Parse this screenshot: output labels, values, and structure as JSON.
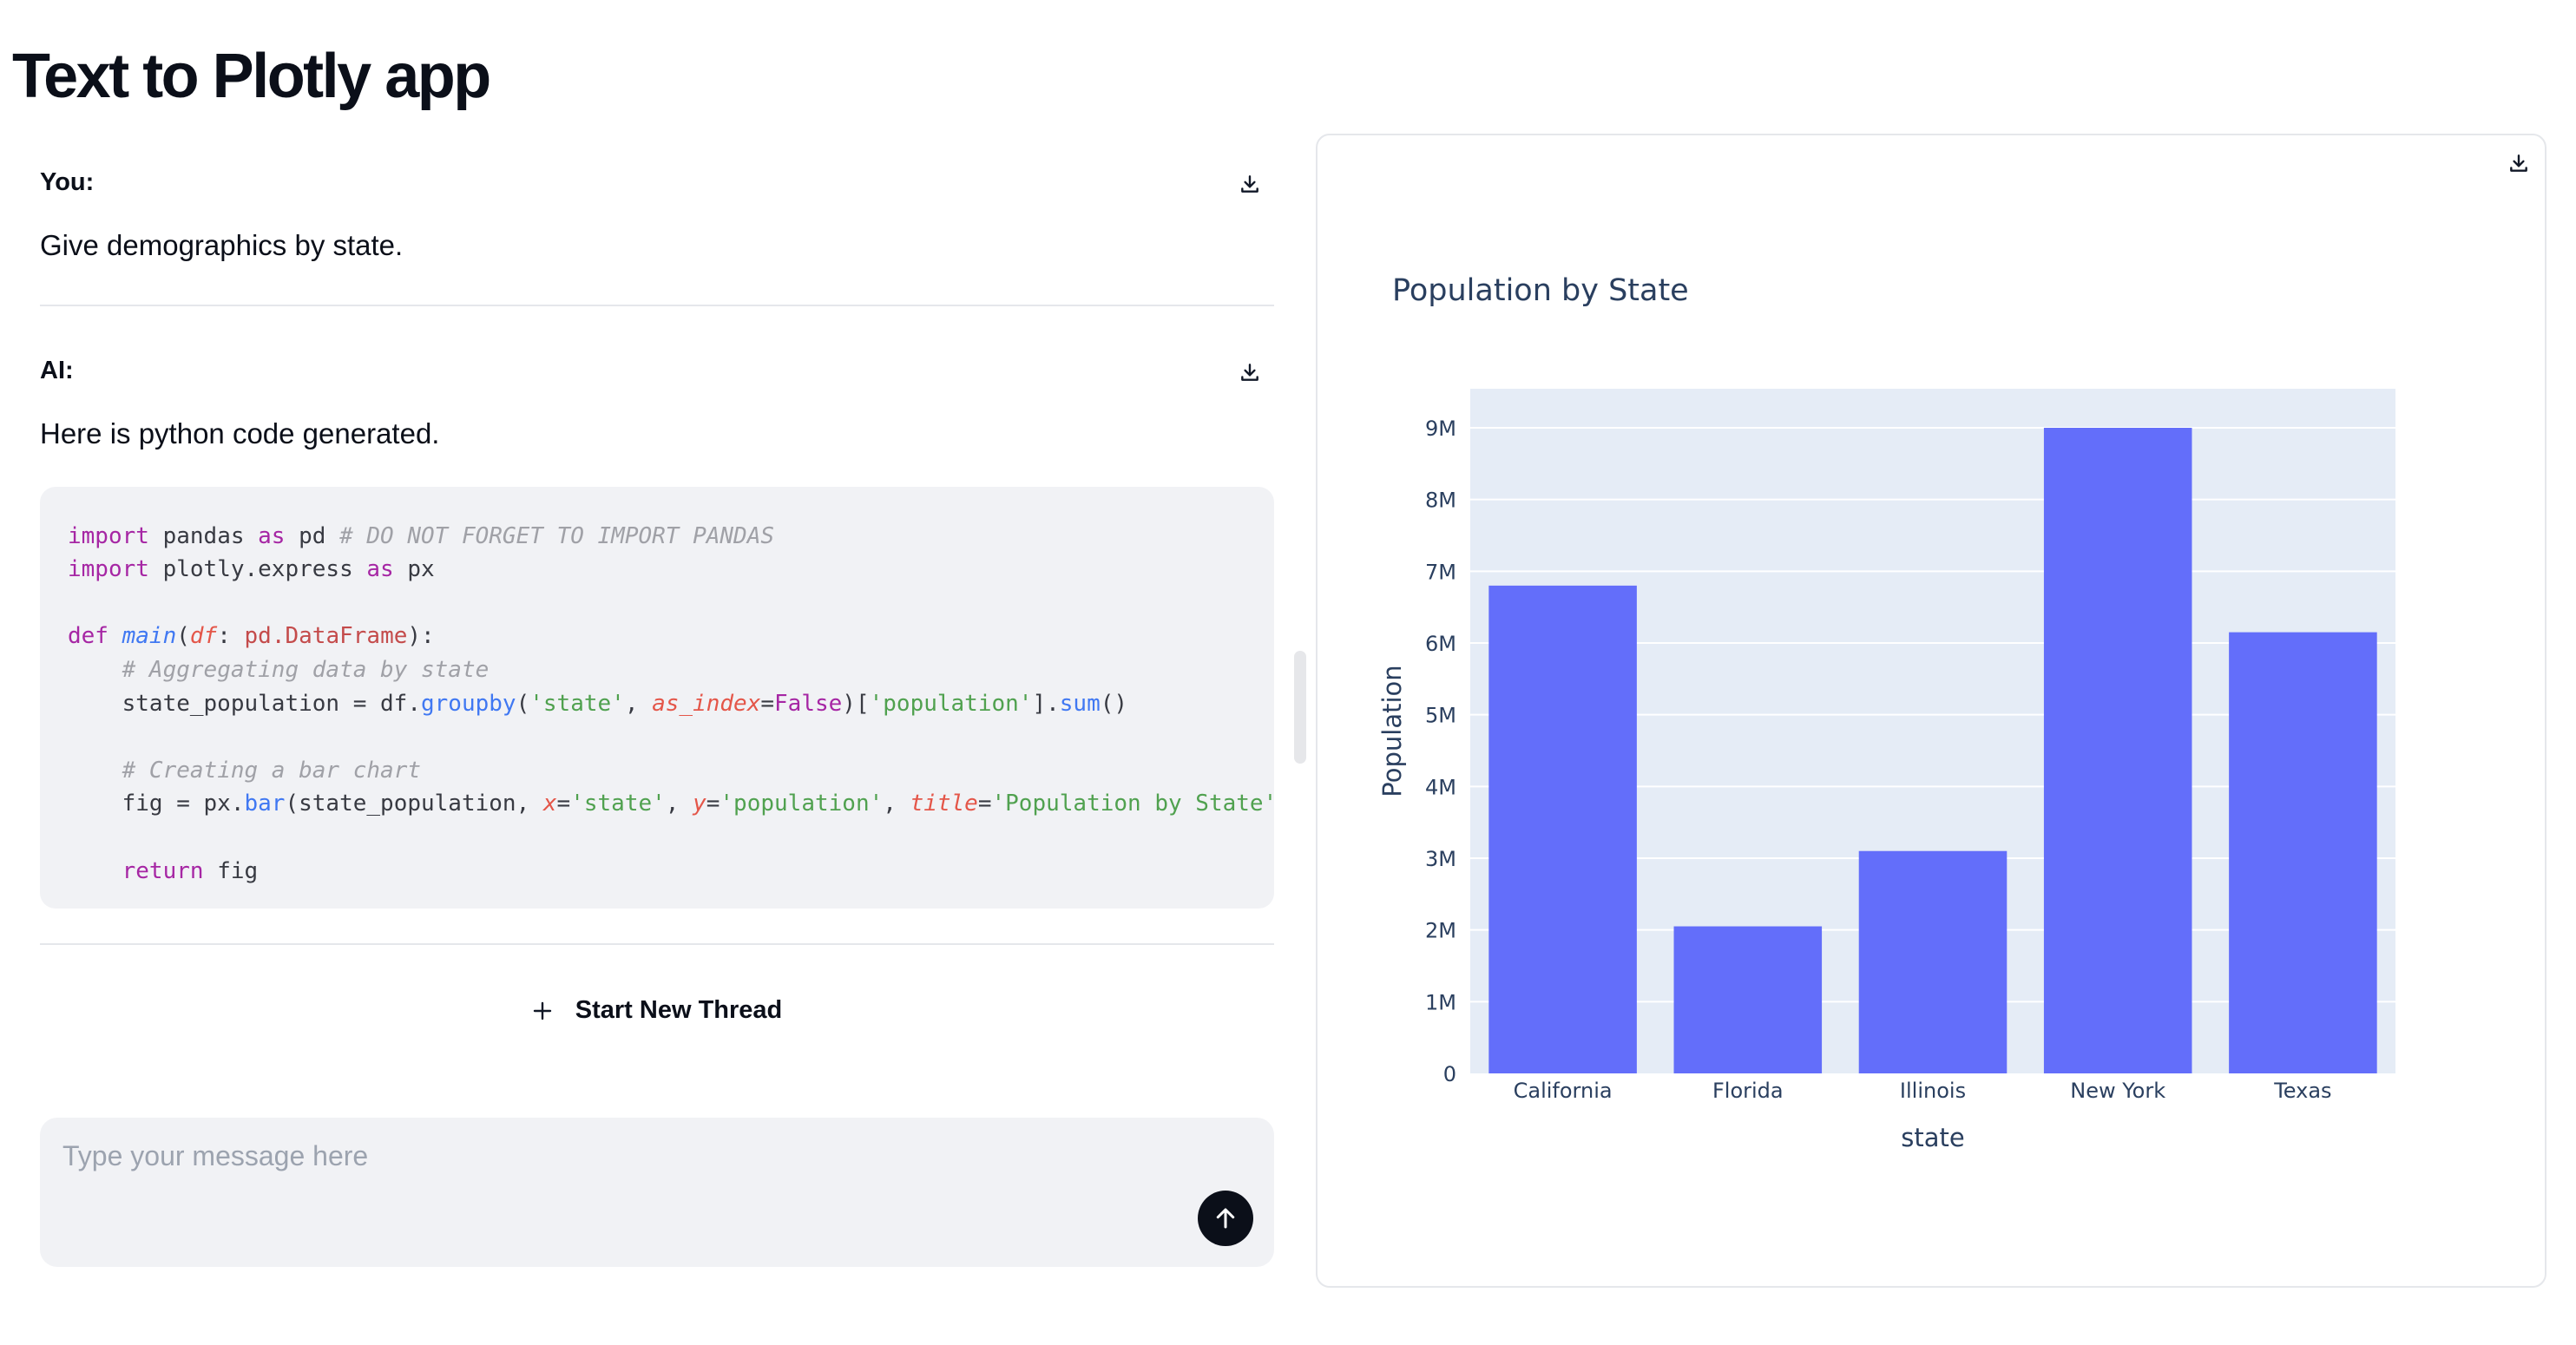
{
  "app": {
    "title": "Text to Plotly app"
  },
  "icons": {
    "download": "download-icon",
    "plus": "plus-icon",
    "send": "arrow-up-icon"
  },
  "colors": {
    "bar": "#636efa",
    "plot_bg": "#e5ecf6",
    "send_button": "#0b0f19"
  },
  "thread": {
    "user": {
      "role": "You:",
      "text": "Give demographics by state."
    },
    "ai": {
      "role": "AI:",
      "text": "Here is python code generated."
    },
    "new_thread_label": "Start New Thread"
  },
  "composer": {
    "placeholder": "Type your message here",
    "value": ""
  },
  "chart_data": {
    "type": "bar",
    "title": "Population by State",
    "xlabel": "state",
    "ylabel": "Population",
    "categories": [
      "California",
      "Florida",
      "Illinois",
      "New York",
      "Texas"
    ],
    "values": [
      6800000,
      2050000,
      3100000,
      9000000,
      6150000
    ],
    "ylim": [
      0,
      9000000
    ],
    "yticks": [
      0,
      1000000,
      2000000,
      3000000,
      4000000,
      5000000,
      6000000,
      7000000,
      8000000,
      9000000
    ],
    "ytick_labels": [
      "0",
      "1M",
      "2M",
      "3M",
      "4M",
      "5M",
      "6M",
      "7M",
      "8M",
      "9M"
    ],
    "grid": true,
    "bar_color": "#636efa",
    "plot_bgcolor": "#e5ecf6"
  }
}
